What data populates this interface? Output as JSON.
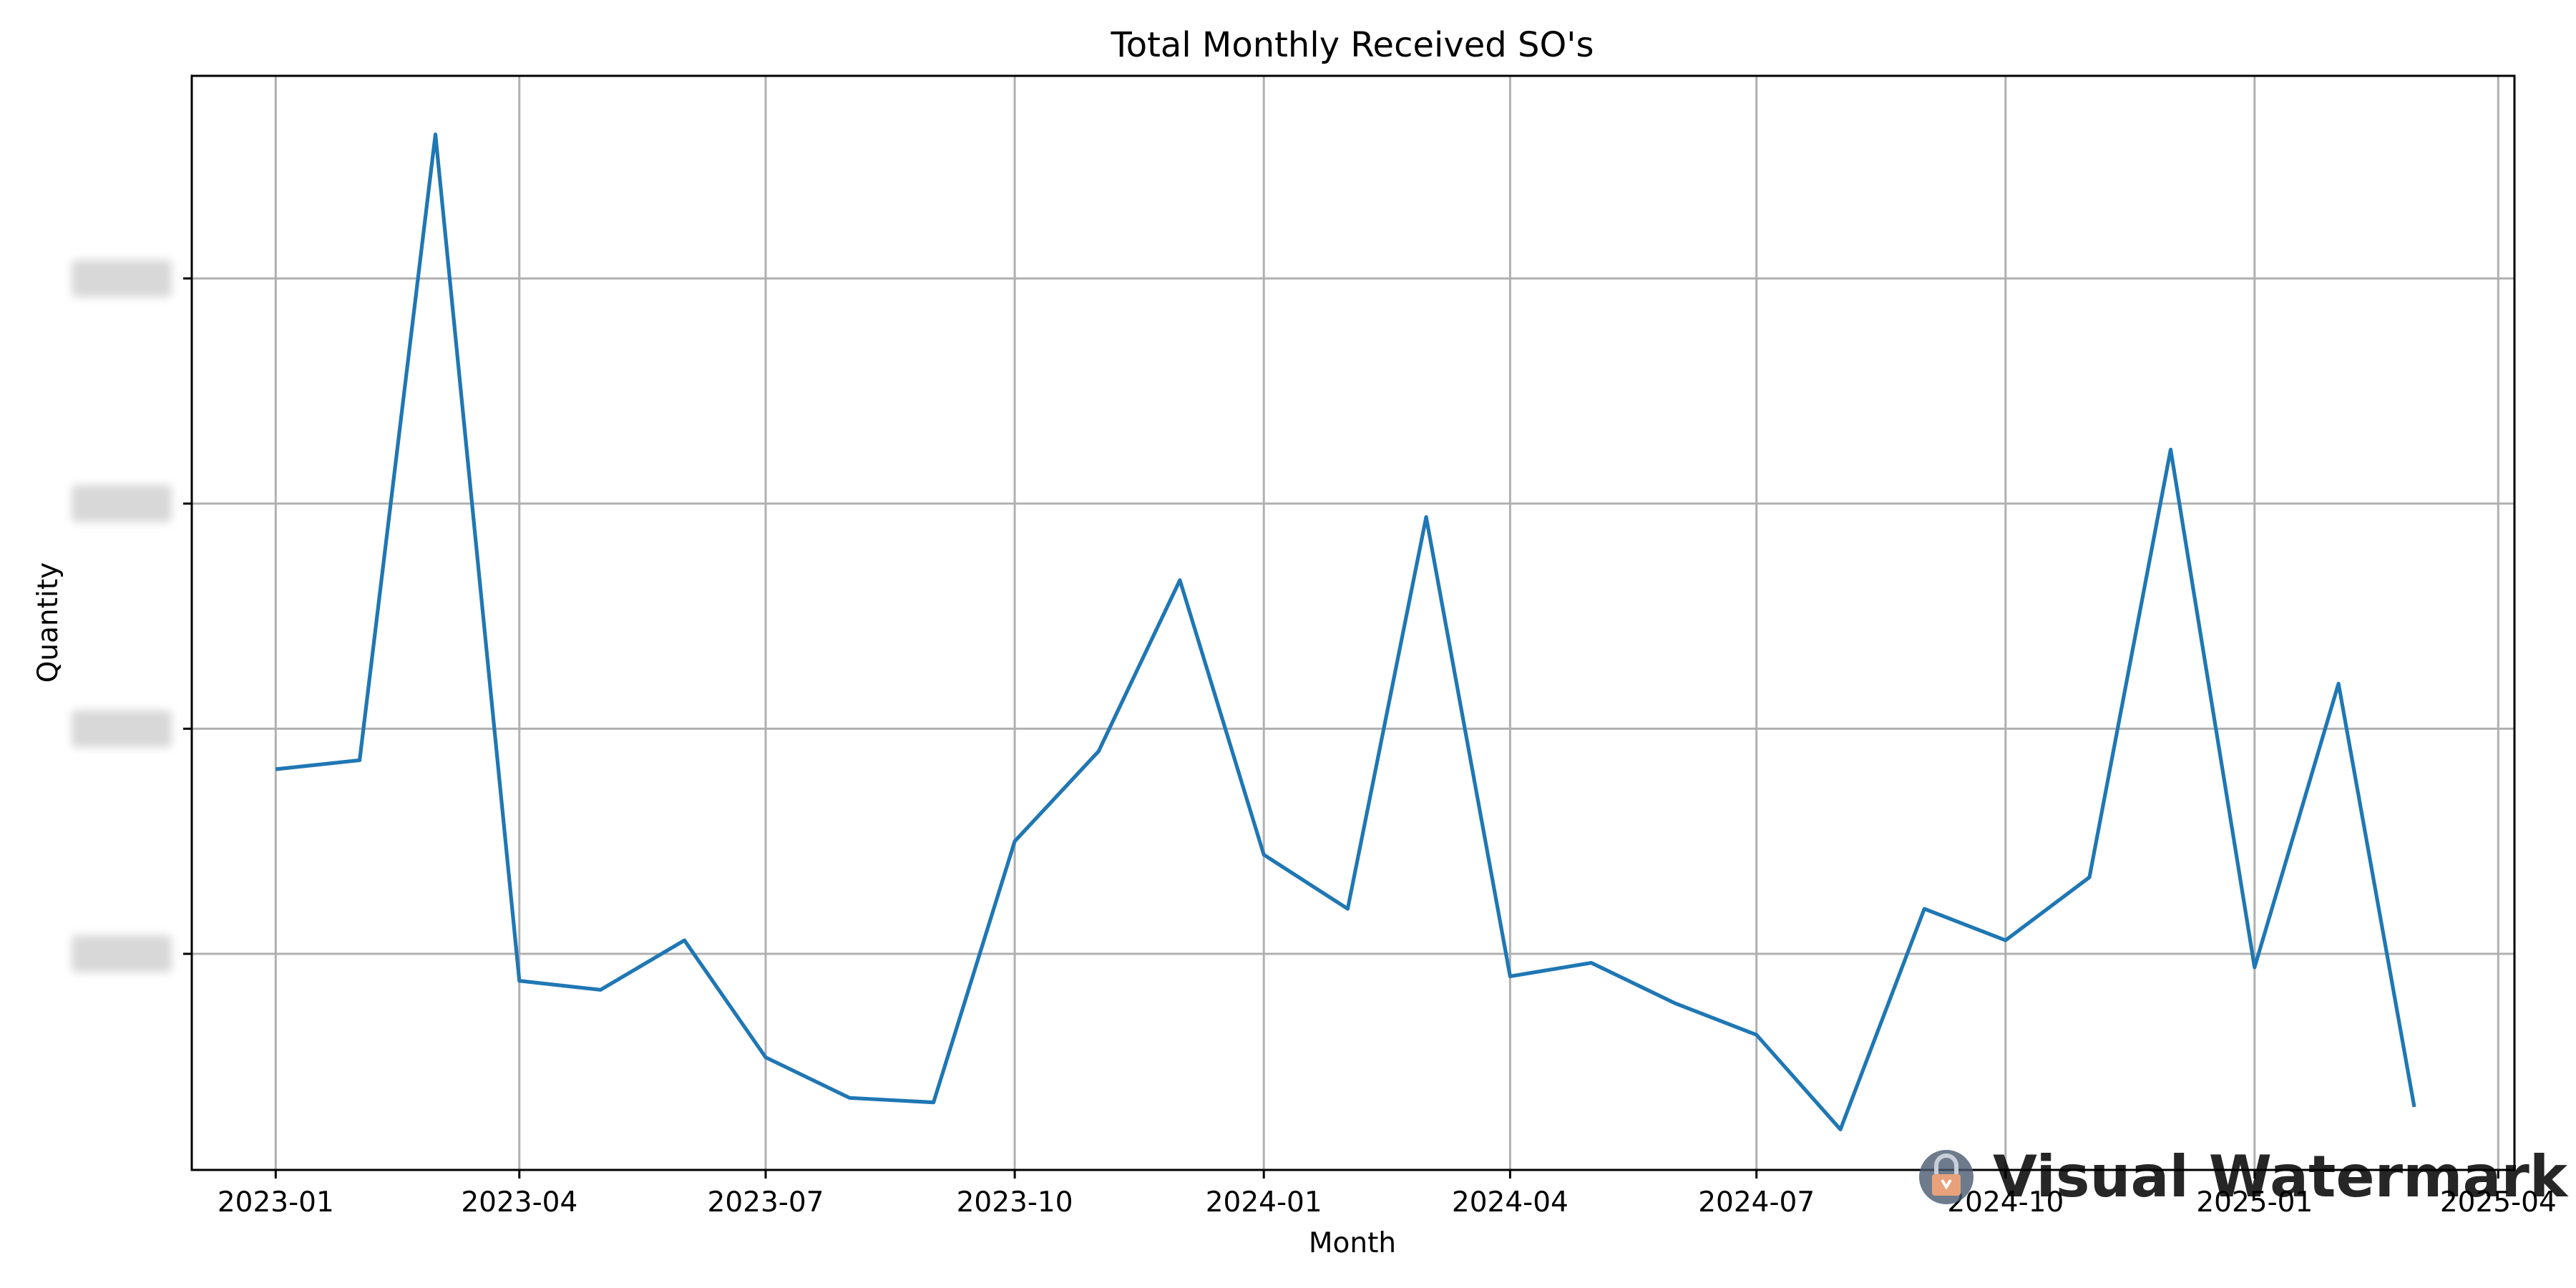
{
  "chart_data": {
    "type": "line",
    "title": "Total Monthly Received SO's",
    "xlabel": "Month",
    "ylabel": "Quantity",
    "x_tick_labels": [
      "2023-01",
      "2023-04",
      "2023-07",
      "2023-10",
      "2024-01",
      "2024-04",
      "2024-07",
      "2024-10",
      "2025-01",
      "2025-04"
    ],
    "x_tick_dates": [
      "2023-01-01",
      "2023-04-01",
      "2023-07-01",
      "2023-10-01",
      "2024-01-01",
      "2024-04-01",
      "2024-07-01",
      "2024-10-01",
      "2025-01-01",
      "2025-04-01"
    ],
    "xlim": [
      "2022-12-01",
      "2025-04-07"
    ],
    "y_ticks": [
      100000,
      150000,
      200000,
      250000
    ],
    "y_tick_labels_obscured": true,
    "ylim": [
      52000,
      295000
    ],
    "grid": true,
    "x": [
      "2023-01-01",
      "2023-02-01",
      "2023-03-01",
      "2023-04-01",
      "2023-05-01",
      "2023-06-01",
      "2023-07-01",
      "2023-08-01",
      "2023-09-01",
      "2023-10-01",
      "2023-11-01",
      "2023-12-01",
      "2024-01-01",
      "2024-02-01",
      "2024-03-01",
      "2024-04-01",
      "2024-05-01",
      "2024-06-01",
      "2024-07-01",
      "2024-08-01",
      "2024-09-01",
      "2024-10-01",
      "2024-11-01",
      "2024-12-01",
      "2025-01-01",
      "2025-02-01",
      "2025-03-01"
    ],
    "series": [
      {
        "color": "#1f77b4",
        "values": [
          141000,
          143000,
          282000,
          94000,
          92000,
          103000,
          77000,
          68000,
          67000,
          125000,
          145000,
          183000,
          122000,
          110000,
          197000,
          95000,
          98000,
          89000,
          82000,
          61000,
          110000,
          103000,
          117000,
          212000,
          97000,
          160000,
          66000
        ]
      }
    ]
  },
  "watermark": {
    "text": "Visual Watermark",
    "text_color": "#e8a17a",
    "icon": "padlock-icon",
    "icon_color": "#4a5a70"
  }
}
